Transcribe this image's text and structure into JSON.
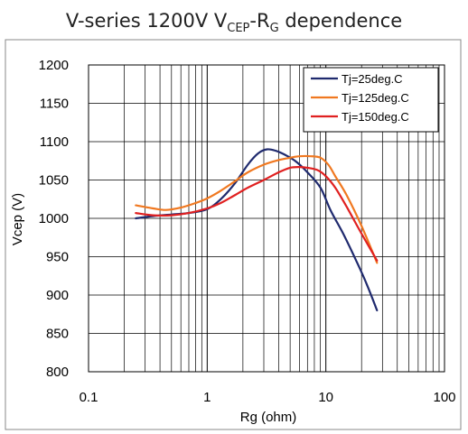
{
  "chart_title": {
    "prefix": "V-series 1200V V",
    "sub1": "CEP",
    "mid": "-R",
    "sub2": "G",
    "suffix": " dependence"
  },
  "chart_data": {
    "type": "line",
    "title": "V-series 1200V VCEP-RG dependence",
    "xlabel": "Rg (ohm)",
    "ylabel": "Vcep (V)",
    "xscale": "log",
    "xlim": [
      0.1,
      100
    ],
    "ylim": [
      800,
      1200
    ],
    "x_ticks": [
      0.1,
      1,
      10,
      100
    ],
    "x_tick_labels": [
      "0.1",
      "1",
      "10",
      "100"
    ],
    "y_ticks": [
      800,
      850,
      900,
      950,
      1000,
      1050,
      1100,
      1150,
      1200
    ],
    "y_tick_labels": [
      "800",
      "850",
      "900",
      "950",
      "1000",
      "1050",
      "1100",
      "1150",
      "1200"
    ],
    "grid": true,
    "legend_position": "top-right",
    "series": [
      {
        "name": "Tj=25deg.C",
        "color": "#1f2a6e",
        "x": [
          0.25,
          0.35,
          0.5,
          0.7,
          1.0,
          1.3,
          1.7,
          2.2,
          2.7,
          3.2,
          3.8,
          4.5,
          5.5,
          7.0,
          9.0,
          11.0,
          14.0,
          18.0,
          22.0,
          27.0
        ],
        "y": [
          1000,
          1003,
          1005,
          1007,
          1012,
          1025,
          1045,
          1070,
          1085,
          1090,
          1088,
          1083,
          1075,
          1060,
          1040,
          1010,
          980,
          945,
          915,
          880
        ]
      },
      {
        "name": "Tj=125deg.C",
        "color": "#f07820",
        "x": [
          0.25,
          0.35,
          0.45,
          0.6,
          0.8,
          1.0,
          1.3,
          1.7,
          2.2,
          3.0,
          4.0,
          5.0,
          6.0,
          7.5,
          9.0,
          10.5,
          12.0,
          15.0,
          20.0,
          27.0
        ],
        "y": [
          1017,
          1013,
          1011,
          1014,
          1020,
          1026,
          1036,
          1048,
          1060,
          1070,
          1076,
          1079,
          1081,
          1081,
          1079,
          1070,
          1055,
          1030,
          990,
          942
        ]
      },
      {
        "name": "Tj=150deg.C",
        "color": "#e02020",
        "x": [
          0.25,
          0.35,
          0.5,
          0.7,
          1.0,
          1.3,
          1.7,
          2.2,
          3.0,
          4.0,
          5.0,
          6.0,
          7.0,
          8.5,
          10.0,
          12.0,
          15.0,
          20.0,
          27.0
        ],
        "y": [
          1007,
          1004,
          1004,
          1007,
          1013,
          1020,
          1030,
          1040,
          1050,
          1060,
          1066,
          1067,
          1066,
          1063,
          1055,
          1040,
          1015,
          980,
          945
        ]
      }
    ]
  }
}
